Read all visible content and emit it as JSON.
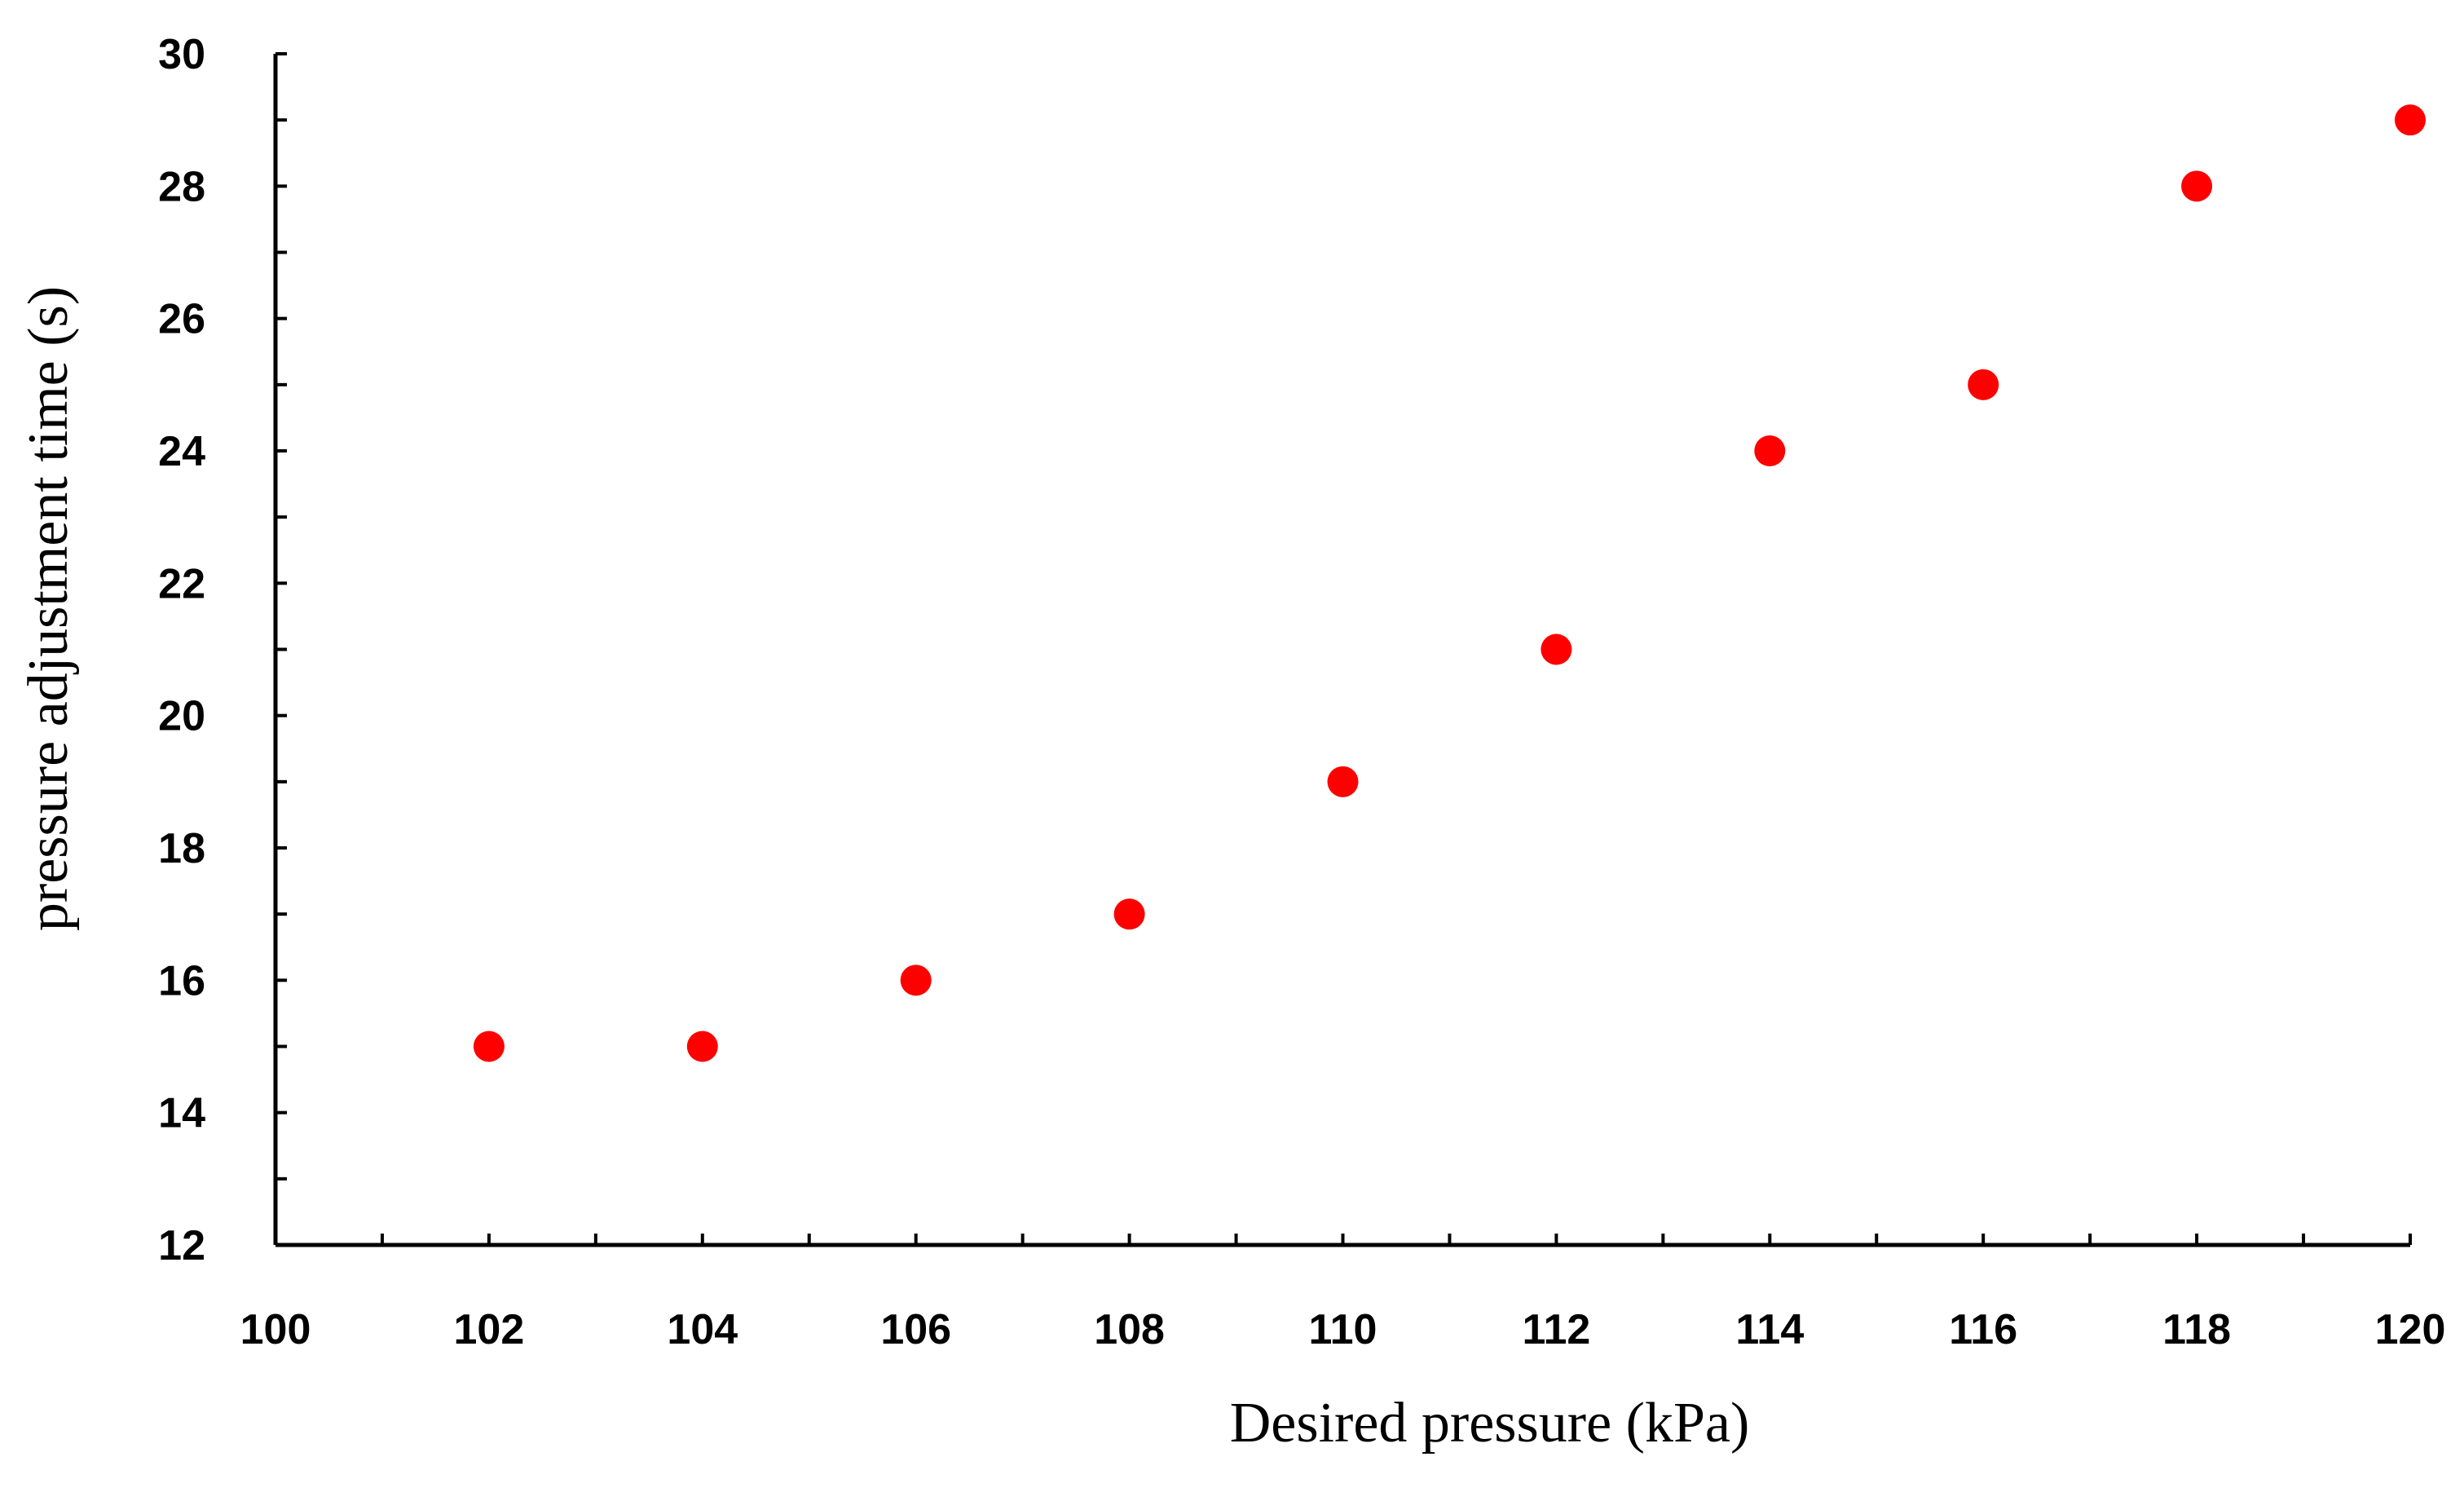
{
  "chart_data": {
    "type": "scatter",
    "xlabel": "Desired pressure (kPa)",
    "ylabel": "pressure adjustment time (s)",
    "xlim": [
      100,
      120
    ],
    "ylim": [
      12,
      30
    ],
    "x_ticks": [
      100,
      102,
      104,
      106,
      108,
      110,
      112,
      114,
      116,
      118,
      120
    ],
    "y_ticks": [
      12,
      14,
      16,
      18,
      20,
      22,
      24,
      26,
      28,
      30
    ],
    "grid": false,
    "legend": "none",
    "series": [
      {
        "color": "#ff0000",
        "points": [
          {
            "x": 102,
            "y": 15
          },
          {
            "x": 104,
            "y": 15
          },
          {
            "x": 106,
            "y": 16
          },
          {
            "x": 108,
            "y": 17
          },
          {
            "x": 110,
            "y": 19
          },
          {
            "x": 112,
            "y": 21
          },
          {
            "x": 114,
            "y": 24
          },
          {
            "x": 116,
            "y": 25
          },
          {
            "x": 118,
            "y": 28
          },
          {
            "x": 120,
            "y": 29
          }
        ]
      }
    ]
  }
}
